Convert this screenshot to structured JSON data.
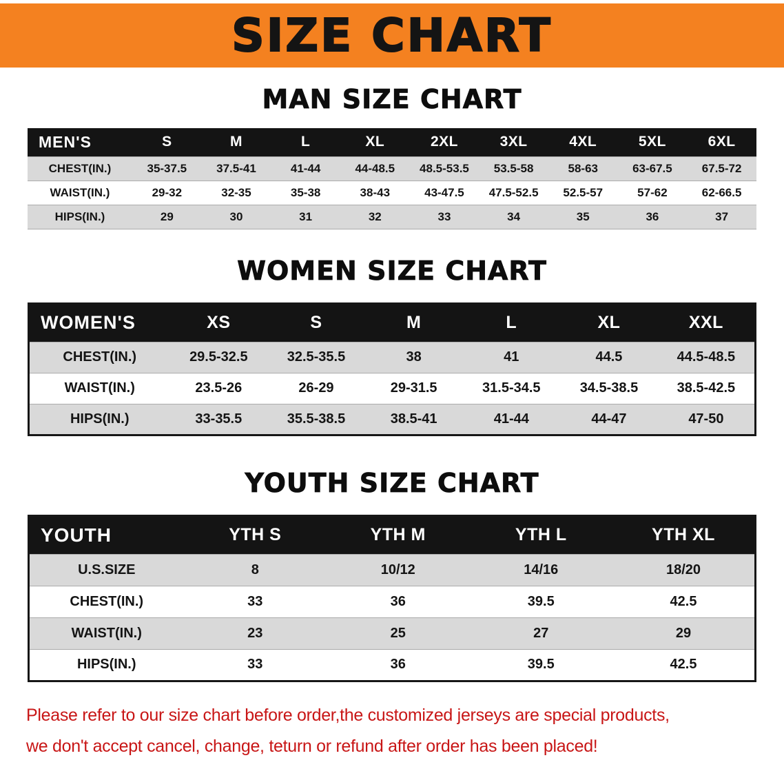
{
  "banner": {
    "title": "SIZE CHART"
  },
  "sections": [
    {
      "id": "men",
      "heading": "MAN SIZE CHART",
      "table": {
        "header": [
          "MEN'S",
          "S",
          "M",
          "L",
          "XL",
          "2XL",
          "3XL",
          "4XL",
          "5XL",
          "6XL"
        ],
        "rows": [
          [
            "CHEST(IN.)",
            "35-37.5",
            "37.5-41",
            "41-44",
            "44-48.5",
            "48.5-53.5",
            "53.5-58",
            "58-63",
            "63-67.5",
            "67.5-72"
          ],
          [
            "WAIST(IN.)",
            "29-32",
            "32-35",
            "35-38",
            "38-43",
            "43-47.5",
            "47.5-52.5",
            "52.5-57",
            "57-62",
            "62-66.5"
          ],
          [
            "HIPS(IN.)",
            "29",
            "30",
            "31",
            "32",
            "33",
            "34",
            "35",
            "36",
            "37"
          ]
        ]
      }
    },
    {
      "id": "women",
      "heading": "WOMEN SIZE CHART",
      "table": {
        "header": [
          "WOMEN'S",
          "XS",
          "S",
          "M",
          "L",
          "XL",
          "XXL"
        ],
        "rows": [
          [
            "CHEST(IN.)",
            "29.5-32.5",
            "32.5-35.5",
            "38",
            "41",
            "44.5",
            "44.5-48.5"
          ],
          [
            "WAIST(IN.)",
            "23.5-26",
            "26-29",
            "29-31.5",
            "31.5-34.5",
            "34.5-38.5",
            "38.5-42.5"
          ],
          [
            "HIPS(IN.)",
            "33-35.5",
            "35.5-38.5",
            "38.5-41",
            "41-44",
            "44-47",
            "47-50"
          ]
        ]
      }
    },
    {
      "id": "youth",
      "heading": "YOUTH SIZE CHART",
      "table": {
        "header": [
          "YOUTH",
          "YTH S",
          "YTH M",
          "YTH L",
          "YTH XL"
        ],
        "rows": [
          [
            "U.S.SIZE",
            "8",
            "10/12",
            "14/16",
            "18/20"
          ],
          [
            "CHEST(IN.)",
            "33",
            "36",
            "39.5",
            "42.5"
          ],
          [
            "WAIST(IN.)",
            "23",
            "25",
            "27",
            "29"
          ],
          [
            "HIPS(IN.)",
            "33",
            "36",
            "39.5",
            "42.5"
          ]
        ]
      }
    }
  ],
  "footer": {
    "line1": "Please refer to our size chart before order,the customized jerseys are special products,",
    "line2": "we don't accept cancel, change, teturn or refund after order has been placed!"
  },
  "colors": {
    "banner_bg": "#f48120",
    "header_bg": "#141414",
    "row_alt_bg": "#d9d9d9",
    "footer_text": "#c81616"
  }
}
